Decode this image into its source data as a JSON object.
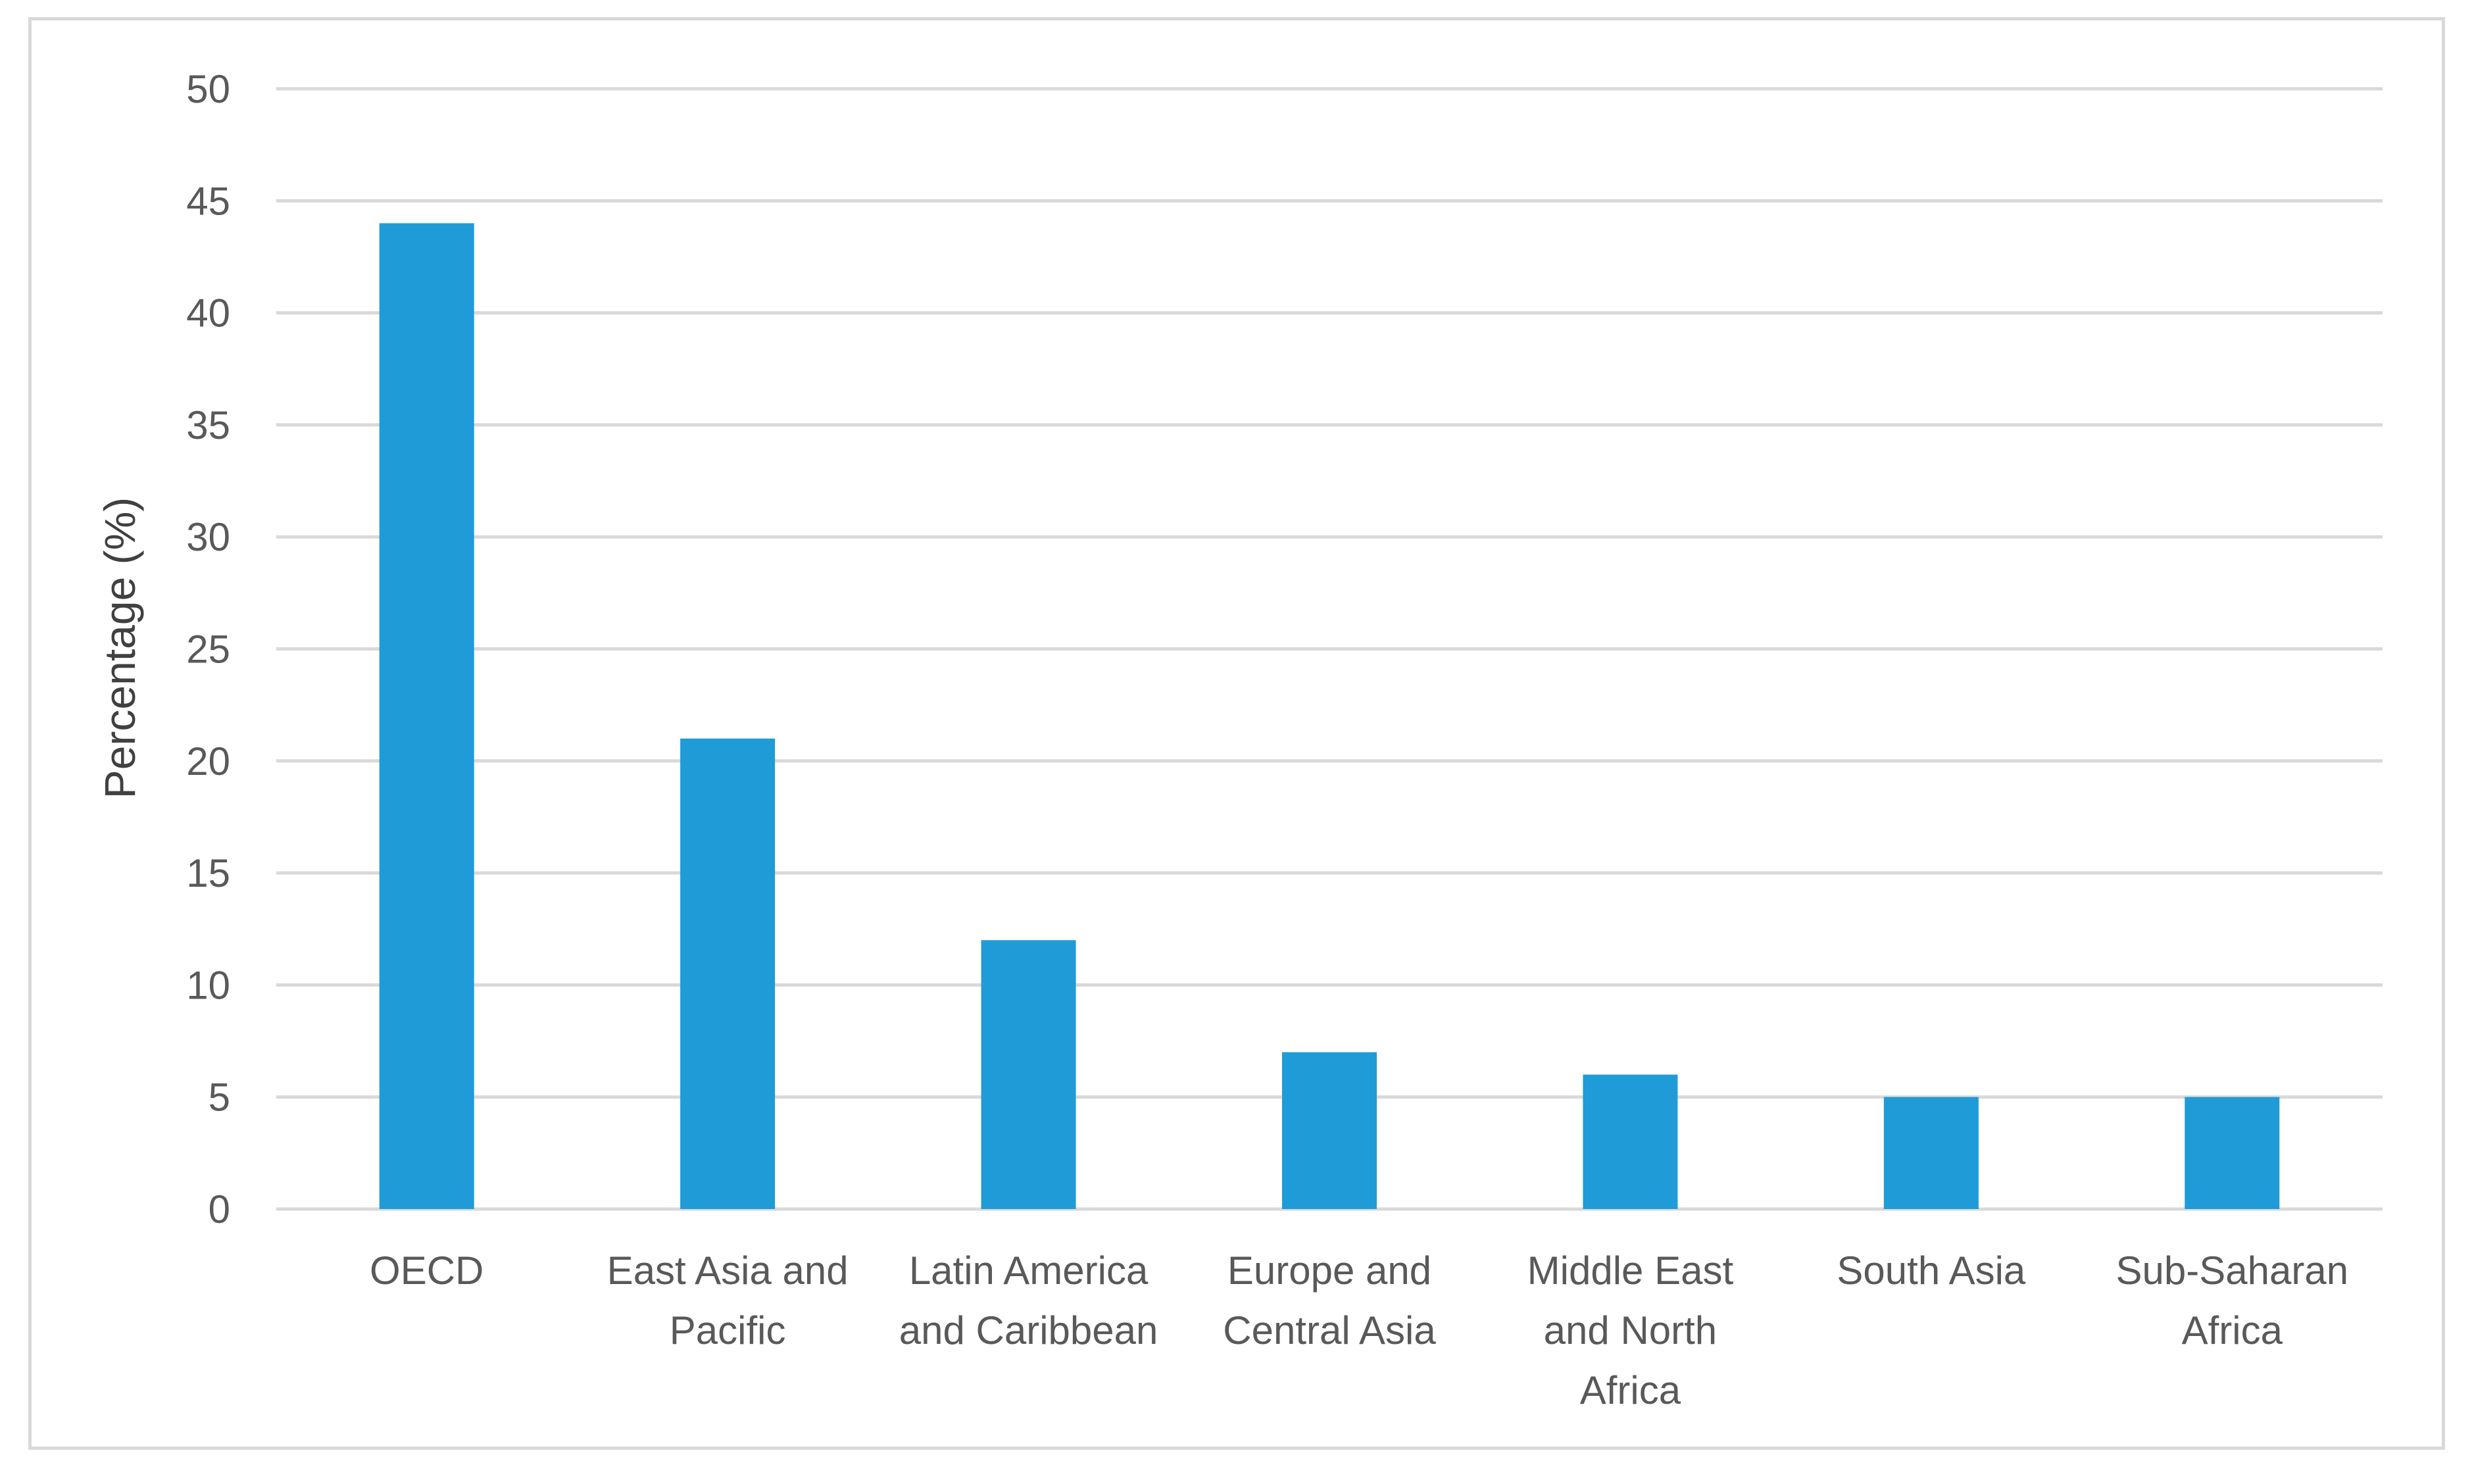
{
  "chart_data": {
    "type": "bar",
    "title": "",
    "xlabel": "",
    "ylabel": "Percentage (%)",
    "ylim": [
      0,
      50
    ],
    "yticks": [
      0,
      5,
      10,
      15,
      20,
      25,
      30,
      35,
      40,
      45,
      50
    ],
    "grid": true,
    "legend": "none",
    "bar_color": "#1f9bd7",
    "categories": [
      "OECD",
      "East Asia and Pacific",
      "Latin America and Caribbean",
      "Europe and Central Asia",
      "Middle East and North Africa",
      "South Asia",
      "Sub-Saharan Africa"
    ],
    "category_label_lines": [
      [
        "OECD"
      ],
      [
        "East Asia and",
        "Pacific"
      ],
      [
        "Latin America",
        "and Caribbean"
      ],
      [
        "Europe and",
        "Central Asia"
      ],
      [
        "Middle East",
        "and North",
        "Africa"
      ],
      [
        "South Asia"
      ],
      [
        "Sub-Saharan",
        "Africa"
      ]
    ],
    "values": [
      44,
      21,
      12,
      7,
      6,
      5,
      5
    ]
  }
}
